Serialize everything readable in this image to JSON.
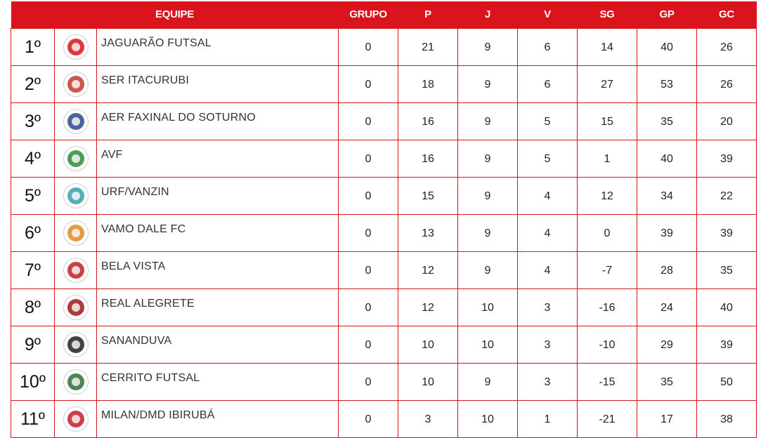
{
  "header": {
    "team": "EQUIPE",
    "grupo": "GRUPO",
    "p": "P",
    "j": "J",
    "v": "V",
    "sg": "SG",
    "gp": "GP",
    "gc": "GC"
  },
  "rows": [
    {
      "pos": "1º",
      "team": "JAGUARÃO FUTSAL",
      "grupo": "0",
      "p": "21",
      "j": "9",
      "v": "6",
      "sg": "14",
      "gp": "40",
      "gc": "26",
      "crest_icon": "jaguarao-crest-icon",
      "crest_color": "#d9141c"
    },
    {
      "pos": "2º",
      "team": "SER ITACURUBI",
      "grupo": "0",
      "p": "18",
      "j": "9",
      "v": "6",
      "sg": "27",
      "gp": "53",
      "gc": "26",
      "crest_icon": "itacurubi-crest-icon",
      "crest_color": "#c0392b"
    },
    {
      "pos": "3º",
      "team": "AER FAXINAL DO SOTURNO",
      "grupo": "0",
      "p": "16",
      "j": "9",
      "v": "5",
      "sg": "15",
      "gp": "35",
      "gc": "20",
      "crest_icon": "faxinal-crest-icon",
      "crest_color": "#2c4a8a"
    },
    {
      "pos": "4º",
      "team": "AVF",
      "grupo": "0",
      "p": "16",
      "j": "9",
      "v": "5",
      "sg": "1",
      "gp": "40",
      "gc": "39",
      "crest_icon": "avf-crest-icon",
      "crest_color": "#2e8b3a"
    },
    {
      "pos": "5º",
      "team": "URF/VANZIN",
      "grupo": "0",
      "p": "15",
      "j": "9",
      "v": "4",
      "sg": "12",
      "gp": "34",
      "gc": "22",
      "crest_icon": "urf-crest-icon",
      "crest_color": "#3aa0a8"
    },
    {
      "pos": "6º",
      "team": "VAMO DALE FC",
      "grupo": "0",
      "p": "13",
      "j": "9",
      "v": "4",
      "sg": "0",
      "gp": "39",
      "gc": "39",
      "crest_icon": "vamo-dale-crest-icon",
      "crest_color": "#e08a1e"
    },
    {
      "pos": "7º",
      "team": "BELA VISTA",
      "grupo": "0",
      "p": "12",
      "j": "9",
      "v": "4",
      "sg": "-7",
      "gp": "28",
      "gc": "35",
      "crest_icon": "bela-vista-crest-icon",
      "crest_color": "#c0202a"
    },
    {
      "pos": "8º",
      "team": "REAL ALEGRETE",
      "grupo": "0",
      "p": "12",
      "j": "10",
      "v": "3",
      "sg": "-16",
      "gp": "24",
      "gc": "40",
      "crest_icon": "real-alegrete-crest-icon",
      "crest_color": "#9c1a1a"
    },
    {
      "pos": "9º",
      "team": "SANANDUVA",
      "grupo": "0",
      "p": "10",
      "j": "10",
      "v": "3",
      "sg": "-10",
      "gp": "29",
      "gc": "39",
      "crest_icon": "sananduva-crest-icon",
      "crest_color": "#222222"
    },
    {
      "pos": "10º",
      "team": "CERRITO FUTSAL",
      "grupo": "0",
      "p": "10",
      "j": "9",
      "v": "3",
      "sg": "-15",
      "gp": "35",
      "gc": "50",
      "crest_icon": "cerrito-crest-icon",
      "crest_color": "#2f6e3a"
    },
    {
      "pos": "11º",
      "team": "MILAN/DMD IBIRUBÁ",
      "grupo": "0",
      "p": "3",
      "j": "10",
      "v": "1",
      "sg": "-21",
      "gp": "17",
      "gc": "38",
      "crest_icon": "milan-crest-icon",
      "crest_color": "#c0202a"
    }
  ],
  "colors": {
    "accent": "#d9141c",
    "header_text": "#ffffff",
    "cell_text": "#222222"
  }
}
